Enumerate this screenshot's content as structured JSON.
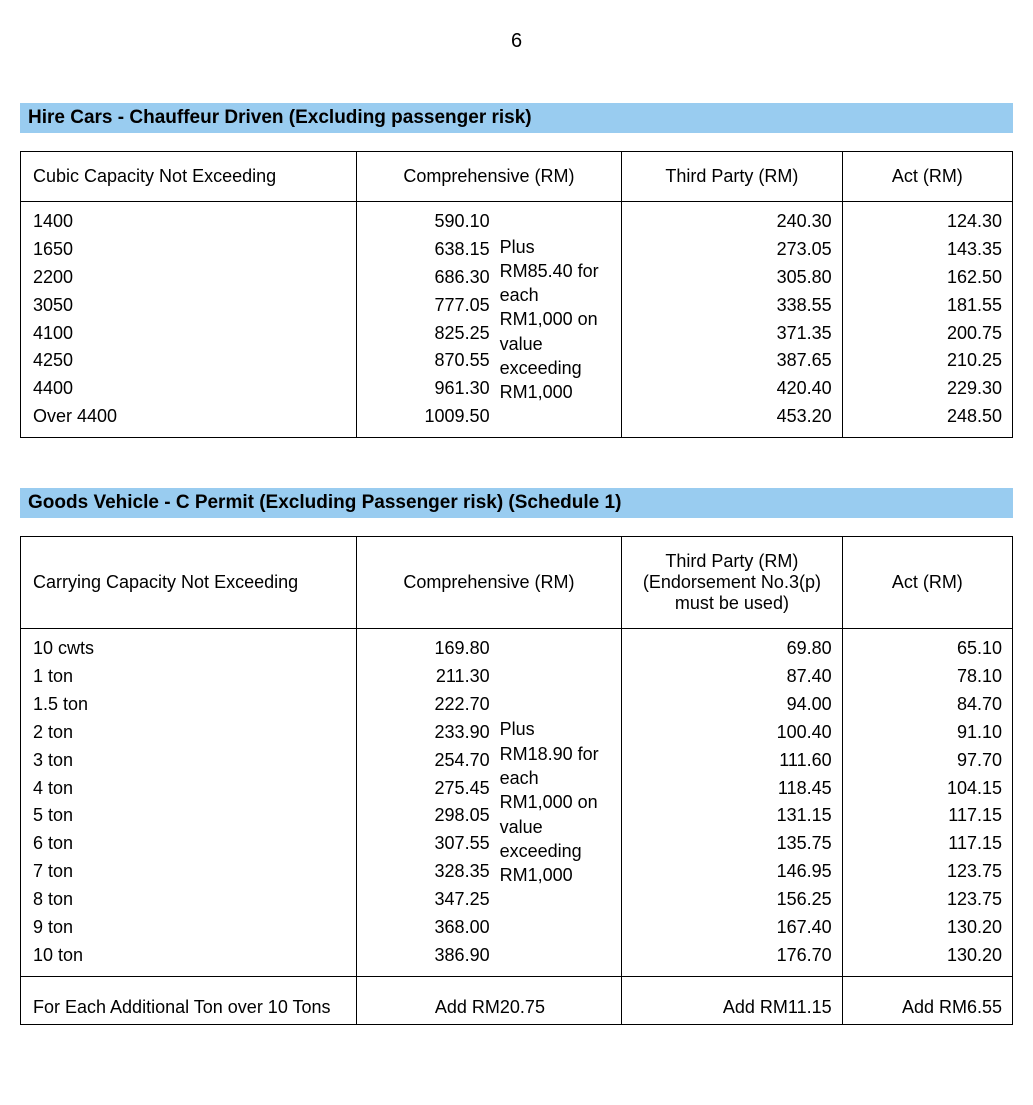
{
  "page_number": "6",
  "section1": {
    "title": "Hire Cars - Chauffeur Driven (Excluding passenger risk)",
    "header_bg": "#99ccf0",
    "columns": {
      "capacity": "Cubic Capacity Not Exceeding",
      "comprehensive": "Comprehensive (RM)",
      "third_party": "Third Party (RM)",
      "act": "Act (RM)"
    },
    "comp_note": "Plus RM85.40 for each RM1,000 on value exceeding RM1,000",
    "rows": [
      {
        "cap": "1400",
        "comp": "590.10",
        "tp": "240.30",
        "act": "124.30"
      },
      {
        "cap": "1650",
        "comp": "638.15",
        "tp": "273.05",
        "act": "143.35"
      },
      {
        "cap": "2200",
        "comp": "686.30",
        "tp": "305.80",
        "act": "162.50"
      },
      {
        "cap": "3050",
        "comp": "777.05",
        "tp": "338.55",
        "act": "181.55"
      },
      {
        "cap": "4100",
        "comp": "825.25",
        "tp": "371.35",
        "act": "200.75"
      },
      {
        "cap": "4250",
        "comp": "870.55",
        "tp": "387.65",
        "act": "210.25"
      },
      {
        "cap": "4400",
        "comp": "961.30",
        "tp": "420.40",
        "act": "229.30"
      },
      {
        "cap": "Over 4400",
        "comp": "1009.50",
        "tp": "453.20",
        "act": "248.50"
      }
    ]
  },
  "section2": {
    "title": "Goods Vehicle - C Permit (Excluding Passenger risk) (Schedule 1)",
    "header_bg": "#99ccf0",
    "columns": {
      "capacity": "Carrying Capacity Not Exceeding",
      "comprehensive": "Comprehensive (RM)",
      "third_party": "Third Party (RM) (Endorsement No.3(p) must be used)",
      "act": "Act (RM)"
    },
    "comp_note": "Plus RM18.90 for each RM1,000 on value exceeding RM1,000",
    "rows": [
      {
        "cap": "10 cwts",
        "comp": "169.80",
        "tp": "69.80",
        "act": "65.10"
      },
      {
        "cap": "1 ton",
        "comp": "211.30",
        "tp": "87.40",
        "act": "78.10"
      },
      {
        "cap": "1.5 ton",
        "comp": "222.70",
        "tp": "94.00",
        "act": "84.70"
      },
      {
        "cap": "2 ton",
        "comp": "233.90",
        "tp": "100.40",
        "act": "91.10"
      },
      {
        "cap": "3 ton",
        "comp": "254.70",
        "tp": "111.60",
        "act": "97.70"
      },
      {
        "cap": "4 ton",
        "comp": "275.45",
        "tp": "118.45",
        "act": "104.15"
      },
      {
        "cap": "5 ton",
        "comp": "298.05",
        "tp": "131.15",
        "act": "117.15"
      },
      {
        "cap": "6 ton",
        "comp": "307.55",
        "tp": "135.75",
        "act": "117.15"
      },
      {
        "cap": "7 ton",
        "comp": "328.35",
        "tp": "146.95",
        "act": "123.75"
      },
      {
        "cap": "8 ton",
        "comp": "347.25",
        "tp": "156.25",
        "act": "123.75"
      },
      {
        "cap": "9 ton",
        "comp": "368.00",
        "tp": "167.40",
        "act": "130.20"
      },
      {
        "cap": "10 ton",
        "comp": "386.90",
        "tp": "176.70",
        "act": "130.20"
      }
    ],
    "additional": {
      "cap": "For Each Additional Ton over 10 Tons",
      "comp": "Add RM20.75",
      "tp": "Add  RM11.15",
      "act": "Add  RM6.55"
    }
  }
}
